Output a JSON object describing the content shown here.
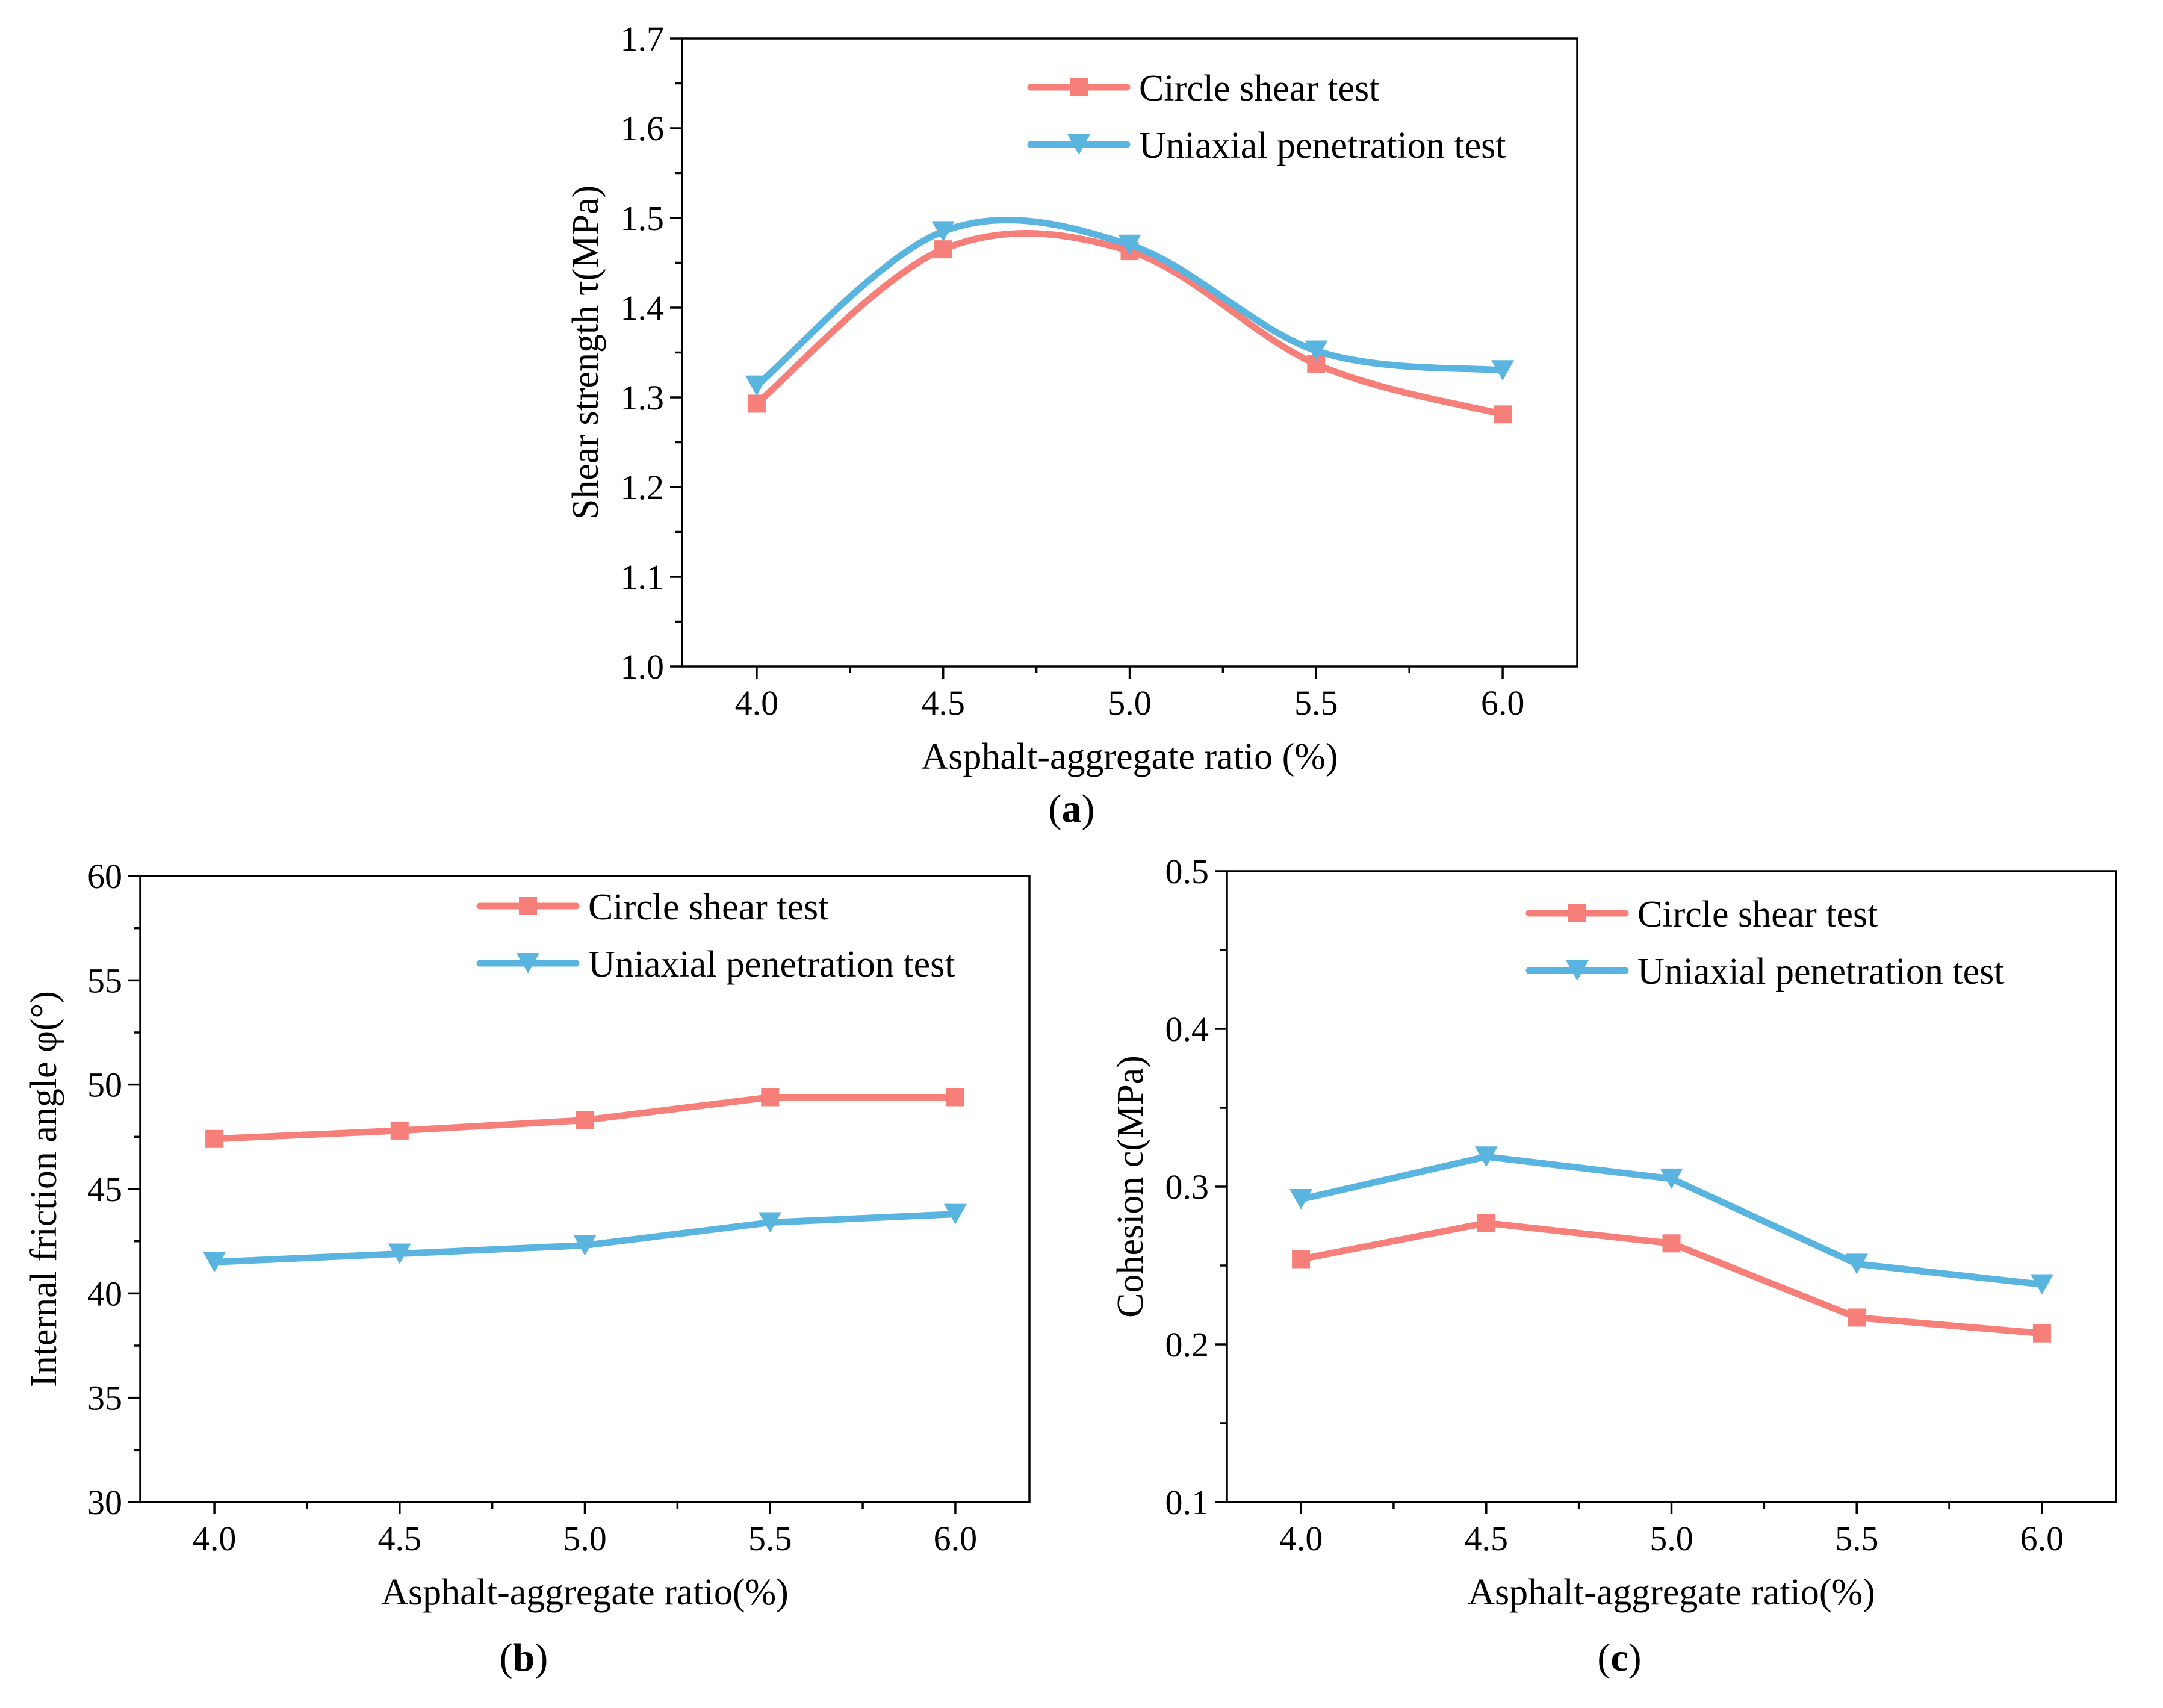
{
  "colors": {
    "circle_shear": "#F77F7A",
    "uniaxial": "#5AB4E0",
    "axis": "#000000"
  },
  "legend": {
    "circle_shear_label": "Circle shear test",
    "uniaxial_label": "Uniaxial penetration test"
  },
  "chart_data": [
    {
      "id": "a",
      "type": "line",
      "smooth": true,
      "panel_label": "a",
      "xlabel": "Asphalt-aggregate ratio (%)",
      "ylabel": "Shear strength  τ(MPa)",
      "x": [
        4.0,
        4.5,
        5.0,
        5.5,
        6.0
      ],
      "xticks": [
        "4.0",
        "4.5",
        "5.0",
        "5.5",
        "6.0"
      ],
      "xlim": [
        3.8,
        6.2
      ],
      "ylim": [
        1.0,
        1.7
      ],
      "yticks": [
        "1.0",
        "1.1",
        "1.2",
        "1.3",
        "1.4",
        "1.5",
        "1.6",
        "1.7"
      ],
      "legend_position": "top-right",
      "series": [
        {
          "name": "Circle shear test",
          "marker": "square",
          "values": [
            1.293,
            1.465,
            1.463,
            1.337,
            1.281
          ]
        },
        {
          "name": "Uniaxial penetration test",
          "marker": "triangle-down",
          "values": [
            1.313,
            1.485,
            1.47,
            1.352,
            1.33
          ]
        }
      ]
    },
    {
      "id": "b",
      "type": "line",
      "smooth": false,
      "panel_label": "b",
      "xlabel": "Asphalt-aggregate ratio(%)",
      "ylabel": "Internal friction angle  φ(°)",
      "x": [
        4.0,
        4.5,
        5.0,
        5.5,
        6.0
      ],
      "xticks": [
        "4.0",
        "4.5",
        "5.0",
        "5.5",
        "6.0"
      ],
      "xlim": [
        3.8,
        6.2
      ],
      "ylim": [
        30,
        60
      ],
      "yticks": [
        "30",
        "35",
        "40",
        "45",
        "50",
        "55",
        "60"
      ],
      "legend_position": "top-right",
      "series": [
        {
          "name": "Circle shear test",
          "marker": "square",
          "values": [
            47.4,
            47.8,
            48.3,
            49.4,
            49.4
          ]
        },
        {
          "name": "Uniaxial penetration test",
          "marker": "triangle-down",
          "values": [
            41.5,
            41.9,
            42.3,
            43.4,
            43.8
          ]
        }
      ]
    },
    {
      "id": "c",
      "type": "line",
      "smooth": false,
      "panel_label": "c",
      "xlabel": "Asphalt-aggregate ratio(%)",
      "ylabel": "Cohesion c(MPa)",
      "x": [
        4.0,
        4.5,
        5.0,
        5.5,
        6.0
      ],
      "xticks": [
        "4.0",
        "4.5",
        "5.0",
        "5.5",
        "6.0"
      ],
      "xlim": [
        3.8,
        6.2
      ],
      "ylim": [
        0.1,
        0.5
      ],
      "yticks": [
        "0.1",
        "0.2",
        "0.3",
        "0.4",
        "0.5"
      ],
      "legend_position": "top-right",
      "series": [
        {
          "name": "Circle shear test",
          "marker": "square",
          "values": [
            0.254,
            0.277,
            0.264,
            0.217,
            0.207
          ]
        },
        {
          "name": "Uniaxial penetration test",
          "marker": "triangle-down",
          "values": [
            0.292,
            0.319,
            0.305,
            0.251,
            0.238
          ]
        }
      ]
    }
  ]
}
